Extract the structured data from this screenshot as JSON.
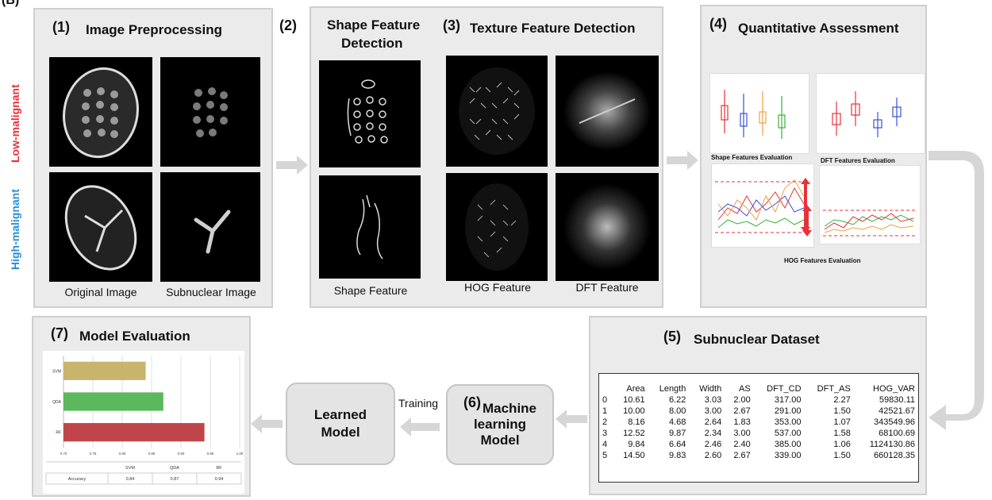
{
  "corner_label": "(B)",
  "colors": {
    "low": "#e8313a",
    "high": "#2a8fd6",
    "arrow": "#d6d6d6"
  },
  "panel1": {
    "num": "(1)",
    "title": "Image Preprocessing",
    "row_low": "Low-malignant",
    "row_high": "High-malignant",
    "cap_left": "Original Image",
    "cap_right": "Subnuclear Image"
  },
  "panel23": {
    "num2": "(2)",
    "title2_line1": "Shape Feature",
    "title2_line2": "Detection",
    "num3": "(3)",
    "title3": "Texture Feature Detection",
    "cap_shape": "Shape Feature",
    "cap_hog": "HOG Feature",
    "cap_dft": "DFT Feature"
  },
  "panel4": {
    "num": "(4)",
    "title": "Quantitative Assessment",
    "sub_shape": "Shape Features Evaluation",
    "sub_dft": "DFT Features Evaluation",
    "sub_hog": "HOG Features Evaluation"
  },
  "panel5": {
    "num": "(5)",
    "title": "Subnuclear Dataset",
    "columns": [
      "",
      "Area",
      "Length",
      "Width",
      "AS",
      "DFT_CD",
      "DFT_AS",
      "HOG_VAR"
    ],
    "rows": [
      [
        "0",
        "10.61",
        "6.22",
        "3.03",
        "2.00",
        "317.00",
        "2.27",
        "59830.11"
      ],
      [
        "1",
        "10.00",
        "8.00",
        "3.00",
        "2.67",
        "291.00",
        "1.50",
        "42521.67"
      ],
      [
        "2",
        "8.16",
        "4.68",
        "2.64",
        "1.83",
        "353.00",
        "1.07",
        "343549.96"
      ],
      [
        "3",
        "12.52",
        "9.87",
        "2.34",
        "3.00",
        "537.00",
        "1.58",
        "68100.69"
      ],
      [
        "4",
        "9.84",
        "6.64",
        "2.46",
        "2.40",
        "385.00",
        "1.06",
        "1124130.86"
      ],
      [
        "5",
        "14.50",
        "9.83",
        "2.60",
        "2.67",
        "339.00",
        "1.50",
        "660128.35"
      ]
    ]
  },
  "ml_box": {
    "num": "(6)",
    "line1": "Machine",
    "line2": "learning",
    "line3": "Model"
  },
  "training_label": "Training",
  "learned_box": {
    "line1": "Learned",
    "line2": "Model"
  },
  "panel7": {
    "num": "(7)",
    "title": "Model Evaluation"
  },
  "chart_data": {
    "type": "bar",
    "orientation": "horizontal",
    "categories": [
      "SVM",
      "QDA",
      "RF"
    ],
    "values": [
      0.84,
      0.87,
      0.94
    ],
    "bar_colors": [
      "#c9b46e",
      "#5cb85c",
      "#c0454a"
    ],
    "xlim": [
      0.7,
      1.0
    ],
    "xticks": [
      "0.70",
      "0.75",
      "0.80",
      "0.85",
      "0.90",
      "0.95",
      "1.00"
    ],
    "table_row_label": "Accuracy",
    "table_values": [
      "0.84",
      "0.87",
      "0.94"
    ]
  }
}
